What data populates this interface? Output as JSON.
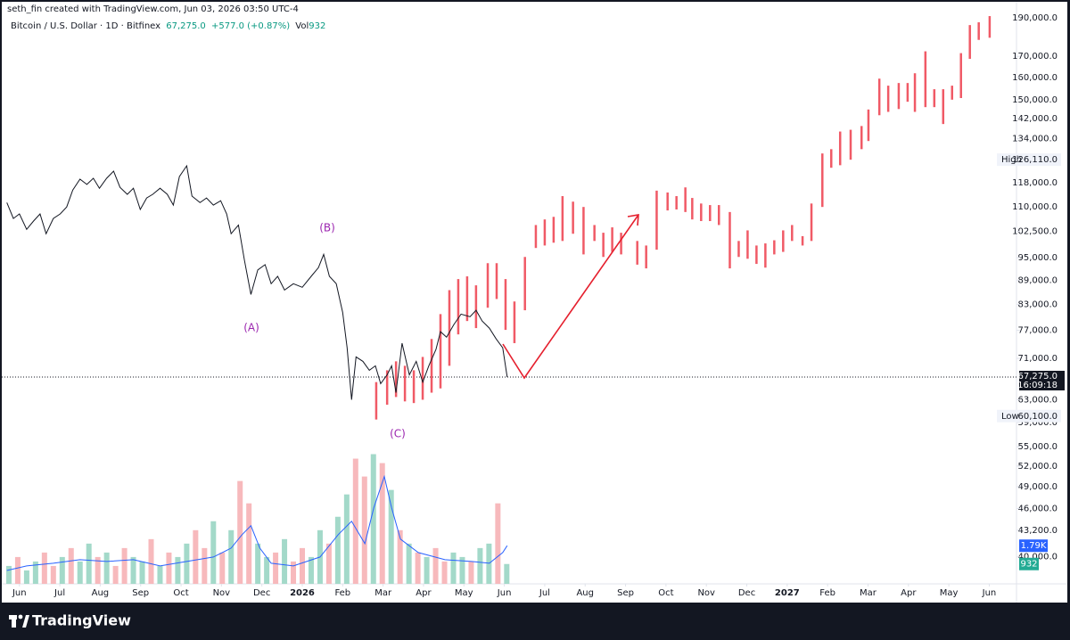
{
  "header": {
    "credit": "seth_fin created with TradingView.com, Jun 03, 2026 03:50 UTC-4",
    "symbol": "Bitcoin / U.S. Dollar · 1D · Bitfinex",
    "change": "+577.0 (+0.87%)",
    "volume_label": "Vol"
  },
  "brand": "TradingView",
  "chart_data": {
    "type": "line",
    "color": "#131722",
    "log_y": true,
    "grid": false,
    "xlim": [
      -0.48,
      24.63
    ],
    "ylim": [
      37000,
      195000
    ],
    "y2lim": [
      0,
      27000
    ],
    "xticks": [
      {
        "value": 0,
        "label": "Jun"
      },
      {
        "value": 1,
        "label": "Jul"
      },
      {
        "value": 2,
        "label": "Aug"
      },
      {
        "value": 3,
        "label": "Sep"
      },
      {
        "value": 4,
        "label": "Oct"
      },
      {
        "value": 5,
        "label": "Nov"
      },
      {
        "value": 6,
        "label": "Dec"
      },
      {
        "value": 7,
        "label": "2026"
      },
      {
        "value": 8,
        "label": "Feb"
      },
      {
        "value": 9,
        "label": "Mar"
      },
      {
        "value": 10,
        "label": "Apr"
      },
      {
        "value": 11,
        "label": "May"
      },
      {
        "value": 12,
        "label": "Jun"
      },
      {
        "value": 13,
        "label": "Jul"
      },
      {
        "value": 14,
        "label": "Aug"
      },
      {
        "value": 15,
        "label": "Sep"
      },
      {
        "value": 16,
        "label": "Oct"
      },
      {
        "value": 17,
        "label": "Nov"
      },
      {
        "value": 18,
        "label": "Dec"
      },
      {
        "value": 19,
        "label": "2027"
      },
      {
        "value": 20,
        "label": "Feb"
      },
      {
        "value": 21,
        "label": "Mar"
      },
      {
        "value": 22,
        "label": "Apr"
      },
      {
        "value": 23,
        "label": "May"
      },
      {
        "value": 24,
        "label": "Jun"
      }
    ],
    "yticks": [
      {
        "value": 190000,
        "label": "190,000.0"
      },
      {
        "value": 170000,
        "label": "170,000.0"
      },
      {
        "value": 160000,
        "label": "160,000.0"
      },
      {
        "value": 150000,
        "label": "150,000.0"
      },
      {
        "value": 142000,
        "label": "142,000.0"
      },
      {
        "value": 134000,
        "label": "134,000.0"
      },
      {
        "value": 118000,
        "label": "118,000.0"
      },
      {
        "value": 110000,
        "label": "110,000.0"
      },
      {
        "value": 102500,
        "label": "102,500.0"
      },
      {
        "value": 95000,
        "label": "95,000.0"
      },
      {
        "value": 89000,
        "label": "89,000.0"
      },
      {
        "value": 83000,
        "label": "83,000.0"
      },
      {
        "value": 77000,
        "label": "77,000.0"
      },
      {
        "value": 71000,
        "label": "71,000.0"
      },
      {
        "value": 63000,
        "label": "63,000.0"
      },
      {
        "value": 59000,
        "label": "59,000.0"
      },
      {
        "value": 55000,
        "label": "55,000.0"
      },
      {
        "value": 52000,
        "label": "52,000.0"
      },
      {
        "value": 49000,
        "label": "49,000.0"
      },
      {
        "value": 46000,
        "label": "46,000.0"
      },
      {
        "value": 43200,
        "label": "43,200.0"
      },
      {
        "value": 40000,
        "label": "40,000.0"
      }
    ],
    "x": [
      -0.31,
      -0.15,
      0,
      0.18,
      0.35,
      0.51,
      0.66,
      0.84,
      1.01,
      1.17,
      1.32,
      1.5,
      1.67,
      1.83,
      1.98,
      2.16,
      2.33,
      2.49,
      2.67,
      2.82,
      2.99,
      3.15,
      3.3,
      3.48,
      3.66,
      3.81,
      3.96,
      4.14,
      4.27,
      4.47,
      4.63,
      4.8,
      4.98,
      5.13,
      5.24,
      5.42,
      5.57,
      5.73,
      5.9,
      6.08,
      6.23,
      6.39,
      6.56,
      6.78,
      7.0,
      7.22,
      7.4,
      7.53,
      7.67,
      7.84,
      8.0,
      8.11,
      8.22,
      8.33,
      8.5,
      8.66,
      8.81,
      8.94,
      9.1,
      9.21,
      9.32,
      9.47,
      9.65,
      9.82,
      9.98,
      10.13,
      10.31,
      10.42,
      10.57,
      10.75,
      10.93,
      11.15,
      11.3,
      11.45,
      11.63,
      11.8,
      11.96,
      12.07
    ],
    "values": [
      111400,
      106400,
      107800,
      103100,
      105600,
      107800,
      101800,
      106400,
      107800,
      110000,
      115500,
      119200,
      117400,
      119500,
      116100,
      119500,
      122000,
      116400,
      114100,
      116100,
      109200,
      112900,
      114100,
      116100,
      114100,
      110600,
      120100,
      123900,
      113500,
      111400,
      112900,
      110600,
      112000,
      107800,
      101800,
      104400,
      94200,
      85400,
      91700,
      93100,
      88100,
      90000,
      86500,
      88100,
      87200,
      90000,
      92300,
      95900,
      90000,
      88100,
      81100,
      73200,
      63000,
      71300,
      70400,
      68600,
      69500,
      66000,
      67700,
      69500,
      64300,
      74200,
      67700,
      70400,
      66300,
      69500,
      72900,
      76700,
      75500,
      78300,
      80700,
      80100,
      81600,
      79100,
      77500,
      75100,
      73200,
      67275
    ],
    "projection": {
      "color": "#f05a66",
      "x": [
        8.83,
        9.1,
        9.32,
        9.54,
        9.76,
        9.98,
        10.2,
        10.42,
        10.64,
        10.86,
        11.08,
        11.3,
        11.59,
        11.81,
        12.03,
        12.25,
        12.51,
        12.78,
        13.0,
        13.22,
        13.44,
        13.7,
        13.96,
        14.23,
        14.45,
        14.67,
        14.89,
        15.29,
        15.51,
        15.77,
        16.04,
        16.26,
        16.48,
        16.65,
        16.87,
        17.09,
        17.31,
        17.58,
        17.8,
        18.02,
        18.24,
        18.46,
        18.68,
        18.9,
        19.12,
        19.38,
        19.6,
        19.87,
        20.09,
        20.31,
        20.57,
        20.84,
        21.01,
        21.28,
        21.5,
        21.76,
        21.98,
        22.16,
        22.42,
        22.64,
        22.86,
        23.08,
        23.3,
        23.52,
        23.74,
        24.01
      ],
      "high": [
        66300,
        68600,
        70400,
        69500,
        68600,
        71300,
        75100,
        80700,
        86500,
        89300,
        90000,
        87700,
        93500,
        93500,
        89300,
        83700,
        95200,
        104400,
        106100,
        106900,
        113500,
        111700,
        110000,
        104400,
        102100,
        103700,
        102100,
        99700,
        98400,
        115300,
        114700,
        113500,
        116400,
        112900,
        111100,
        110600,
        110600,
        108400,
        99700,
        102800,
        98400,
        99000,
        99900,
        102800,
        104400,
        101100,
        111100,
        128400,
        130000,
        136800,
        137500,
        139000,
        145800,
        159400,
        156200,
        157400,
        157400,
        161900,
        172500,
        154600,
        154600,
        156200,
        171600,
        186100,
        187600,
        191000
      ],
      "low": [
        59500,
        62100,
        63500,
        62700,
        62400,
        63000,
        64300,
        65100,
        69500,
        76100,
        79100,
        77500,
        82200,
        84300,
        77100,
        74200,
        81600,
        97700,
        98400,
        99200,
        99700,
        101800,
        95900,
        99700,
        95200,
        96600,
        95900,
        93100,
        92100,
        97200,
        108900,
        109200,
        108400,
        106100,
        105600,
        105600,
        104400,
        92100,
        95200,
        94700,
        93300,
        92300,
        95900,
        96600,
        99700,
        98400,
        99700,
        110000,
        123200,
        124100,
        126100,
        130000,
        133100,
        143400,
        144800,
        146000,
        149100,
        144800,
        146800,
        146800,
        139800,
        150000,
        150700,
        168800,
        178300,
        179400
      ]
    },
    "volume": {
      "x": [
        -0.26,
        -0.04,
        0.18,
        0.4,
        0.62,
        0.84,
        1.06,
        1.28,
        1.5,
        1.72,
        1.94,
        2.16,
        2.38,
        2.6,
        2.82,
        3.04,
        3.26,
        3.48,
        3.7,
        3.92,
        4.14,
        4.36,
        4.58,
        4.8,
        5.02,
        5.24,
        5.46,
        5.68,
        5.9,
        6.12,
        6.34,
        6.56,
        6.78,
        7.0,
        7.22,
        7.44,
        7.66,
        7.88,
        8.1,
        8.32,
        8.54,
        8.76,
        8.98,
        9.2,
        9.42,
        9.64,
        9.86,
        10.08,
        10.3,
        10.52,
        10.74,
        10.96,
        11.18,
        11.4,
        11.62,
        11.84,
        12.06
      ],
      "values": [
        840,
        1260,
        630,
        1050,
        1470,
        840,
        1260,
        1680,
        1050,
        1890,
        1260,
        1470,
        840,
        1680,
        1260,
        1050,
        2100,
        840,
        1470,
        1260,
        1890,
        2520,
        1680,
        2940,
        1470,
        2520,
        4830,
        3780,
        1890,
        1260,
        1470,
        2100,
        1050,
        1680,
        1260,
        2520,
        1890,
        3150,
        4200,
        5880,
        5040,
        6090,
        5670,
        4410,
        2520,
        1890,
        1470,
        1260,
        1680,
        1050,
        1470,
        1260,
        1050,
        1680,
        1890,
        3780,
        932
      ],
      "colors": [
        "#a3d9c9",
        "#f7b9bc",
        "#a3d9c9",
        "#a3d9c9",
        "#f7b9bc",
        "#f7b9bc",
        "#a3d9c9",
        "#f7b9bc",
        "#a3d9c9",
        "#a3d9c9",
        "#f7b9bc",
        "#a3d9c9",
        "#f7b9bc",
        "#f7b9bc",
        "#a3d9c9",
        "#a3d9c9",
        "#f7b9bc",
        "#a3d9c9",
        "#f7b9bc",
        "#a3d9c9",
        "#a3d9c9",
        "#f7b9bc",
        "#f7b9bc",
        "#a3d9c9",
        "#f7b9bc",
        "#a3d9c9",
        "#f7b9bc",
        "#f7b9bc",
        "#a3d9c9",
        "#a3d9c9",
        "#f7b9bc",
        "#a3d9c9",
        "#f7b9bc",
        "#f7b9bc",
        "#a3d9c9",
        "#a3d9c9",
        "#f7b9bc",
        "#a3d9c9",
        "#a3d9c9",
        "#f7b9bc",
        "#f7b9bc",
        "#a3d9c9",
        "#f7b9bc",
        "#a3d9c9",
        "#f7b9bc",
        "#a3d9c9",
        "#f7b9bc",
        "#a3d9c9",
        "#f7b9bc",
        "#f7b9bc",
        "#a3d9c9",
        "#a3d9c9",
        "#f7b9bc",
        "#a3d9c9",
        "#a3d9c9",
        "#f7b9bc",
        "#a3d9c9"
      ]
    },
    "volume_ma": {
      "color": "#2962ff",
      "x": [
        -0.31,
        0.18,
        0.84,
        1.5,
        2.16,
        2.82,
        3.48,
        4.14,
        4.8,
        5.24,
        5.51,
        5.73,
        5.95,
        6.23,
        6.78,
        7.44,
        7.89,
        8.22,
        8.55,
        8.77,
        9.03,
        9.21,
        9.43,
        9.87,
        10.53,
        11.19,
        11.63,
        11.96,
        12.07
      ],
      "values": [
        630,
        840,
        966,
        1134,
        1050,
        1134,
        840,
        1050,
        1260,
        1680,
        2310,
        2730,
        1680,
        966,
        840,
        1260,
        2310,
        2940,
        1890,
        3570,
        5040,
        3570,
        2100,
        1470,
        1134,
        1050,
        966,
        1470,
        1790
      ],
      "last_label": "1.79K"
    },
    "last_price": {
      "value": 67275,
      "label": "67,275.0",
      "countdown": "16:09:18"
    },
    "high": {
      "text": "High",
      "value": 126110,
      "label": "126,110.0"
    },
    "low": {
      "text": "Low",
      "value": 60100,
      "label": "60,100.0"
    },
    "annotations": [
      "(A)",
      "(B)",
      "(C)"
    ],
    "annotation_color": "#9c27b0"
  }
}
